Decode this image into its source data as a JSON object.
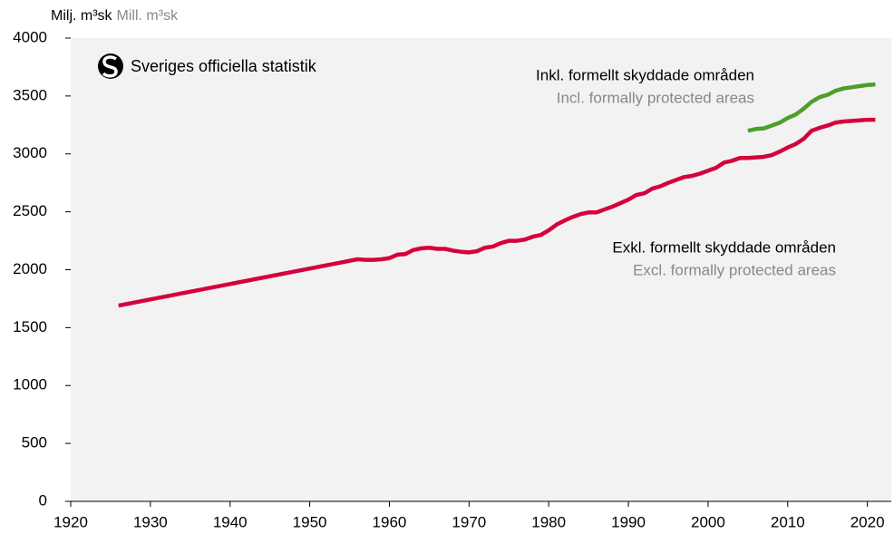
{
  "chart_data": {
    "type": "line",
    "y_label": "Milj. m³sk",
    "y_label_en": "Mill. m³sk",
    "logo": "Sveriges officiella statistik",
    "x": [
      1926,
      1956,
      1957,
      1958,
      1959,
      1960,
      1961,
      1962,
      1963,
      1964,
      1965,
      1966,
      1967,
      1968,
      1969,
      1970,
      1971,
      1972,
      1973,
      1974,
      1975,
      1976,
      1977,
      1978,
      1979,
      1980,
      1981,
      1982,
      1983,
      1984,
      1985,
      1986,
      1987,
      1988,
      1989,
      1990,
      1991,
      1992,
      1993,
      1994,
      1995,
      1996,
      1997,
      1998,
      1999,
      2000,
      2001,
      2002,
      2003,
      2004,
      2005,
      2006,
      2007,
      2008,
      2009,
      2010,
      2011,
      2012,
      2013,
      2014,
      2015,
      2016,
      2017,
      2018,
      2019,
      2020,
      2021
    ],
    "series": [
      {
        "name": "Exkl. formellt skyddade områden",
        "name_en": "Excl. formally protected areas",
        "color": "#d5003d",
        "values": [
          1690,
          2090,
          2085,
          2085,
          2090,
          2100,
          2130,
          2135,
          2170,
          2185,
          2190,
          2180,
          2180,
          2165,
          2155,
          2150,
          2160,
          2190,
          2200,
          2230,
          2250,
          2250,
          2260,
          2285,
          2300,
          2340,
          2390,
          2425,
          2455,
          2480,
          2495,
          2495,
          2520,
          2545,
          2575,
          2605,
          2645,
          2660,
          2700,
          2720,
          2750,
          2775,
          2800,
          2810,
          2830,
          2855,
          2880,
          2925,
          2940,
          2965,
          2965,
          2970,
          2975,
          2990,
          3020,
          3055,
          3085,
          3130,
          3200,
          3225,
          3245,
          3270,
          3280,
          3285,
          3290,
          3295,
          3295
        ]
      },
      {
        "name": "Inkl. formellt skyddade områden",
        "name_en": "Incl. formally protected areas",
        "color": "#4e9e2b",
        "values": [
          null,
          null,
          null,
          null,
          null,
          null,
          null,
          null,
          null,
          null,
          null,
          null,
          null,
          null,
          null,
          null,
          null,
          null,
          null,
          null,
          null,
          null,
          null,
          null,
          null,
          null,
          null,
          null,
          null,
          null,
          null,
          null,
          null,
          null,
          null,
          null,
          null,
          null,
          null,
          null,
          null,
          null,
          null,
          null,
          null,
          null,
          null,
          null,
          null,
          null,
          3200,
          3215,
          3220,
          3245,
          3270,
          3310,
          3340,
          3390,
          3450,
          3490,
          3510,
          3545,
          3565,
          3575,
          3585,
          3595,
          3600
        ]
      }
    ],
    "xlim": [
      1920,
      2023
    ],
    "ylim": [
      0,
      4000
    ],
    "xticks": [
      1920,
      1930,
      1940,
      1950,
      1960,
      1970,
      1980,
      1990,
      2000,
      2010,
      2020
    ],
    "yticks": [
      0,
      500,
      1000,
      1500,
      2000,
      2500,
      3000,
      3500,
      4000
    ],
    "grid": false
  }
}
